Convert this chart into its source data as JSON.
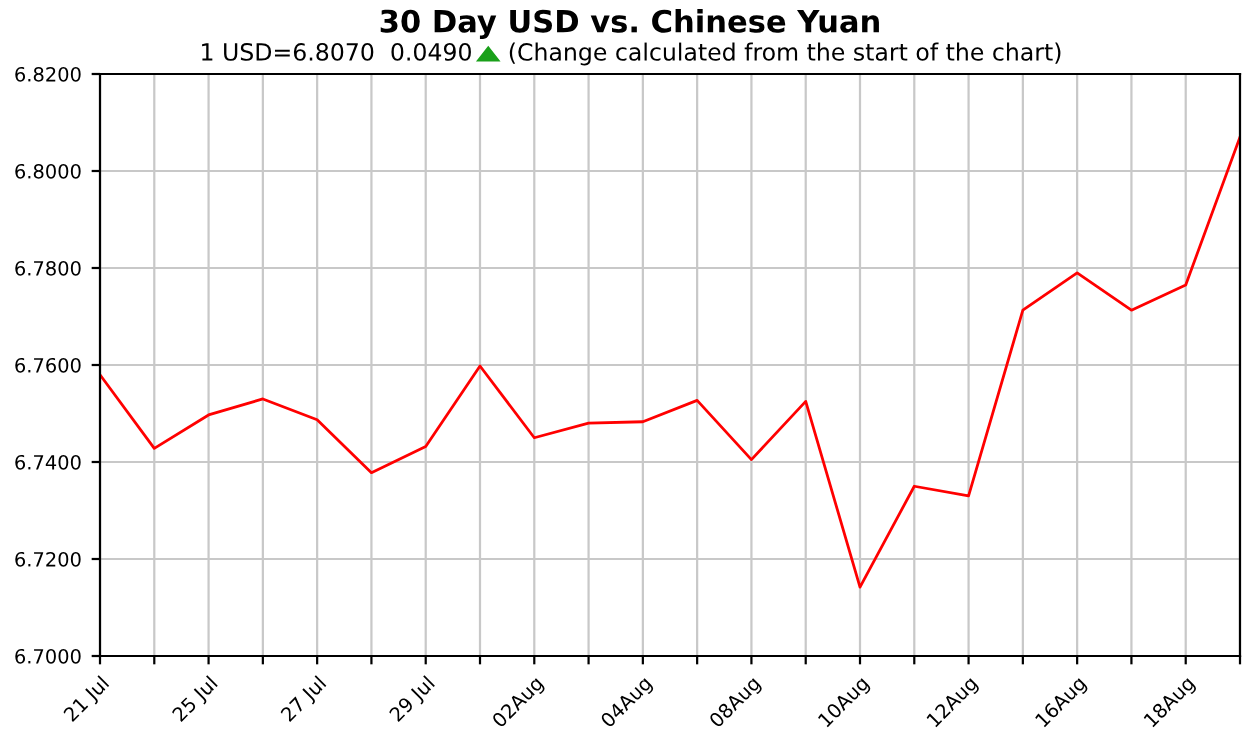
{
  "chart_data": {
    "type": "line",
    "title": "30 Day USD vs. Chinese Yuan",
    "subtitle": "1 USD=6.8070  0.0490",
    "annotations": [
      "(Change calculated from the start of the chart)"
    ],
    "categories": [
      "21 Jul",
      null,
      "25 Jul",
      null,
      "27 Jul",
      null,
      "29 Jul",
      null,
      "02Aug",
      null,
      "04Aug",
      null,
      "08Aug",
      null,
      "10Aug",
      null,
      "12Aug",
      null,
      "16Aug",
      null,
      "18Aug",
      null
    ],
    "series": [
      {
        "color": "#ff0000",
        "values": [
          6.758,
          6.7428,
          6.7497,
          6.753,
          6.7487,
          6.7378,
          6.7432,
          6.7598,
          6.745,
          6.748,
          6.7483,
          6.7527,
          6.7405,
          6.7525,
          6.7142,
          6.735,
          6.733,
          6.7713,
          6.779,
          6.7713,
          6.7765,
          6.807
        ]
      }
    ],
    "ylim": [
      6.7,
      6.82
    ],
    "yticks": [
      {
        "value": 6.7,
        "label": "6.7000"
      },
      {
        "value": 6.72,
        "label": "6.7200"
      },
      {
        "value": 6.74,
        "label": "6.7400"
      },
      {
        "value": 6.76,
        "label": "6.7600"
      },
      {
        "value": 6.78,
        "label": "6.7800"
      },
      {
        "value": 6.8,
        "label": "6.8000"
      },
      {
        "value": 6.82,
        "label": "6.8200"
      }
    ],
    "grid": true,
    "legend": false,
    "marker": "none",
    "line_style": "solid"
  }
}
